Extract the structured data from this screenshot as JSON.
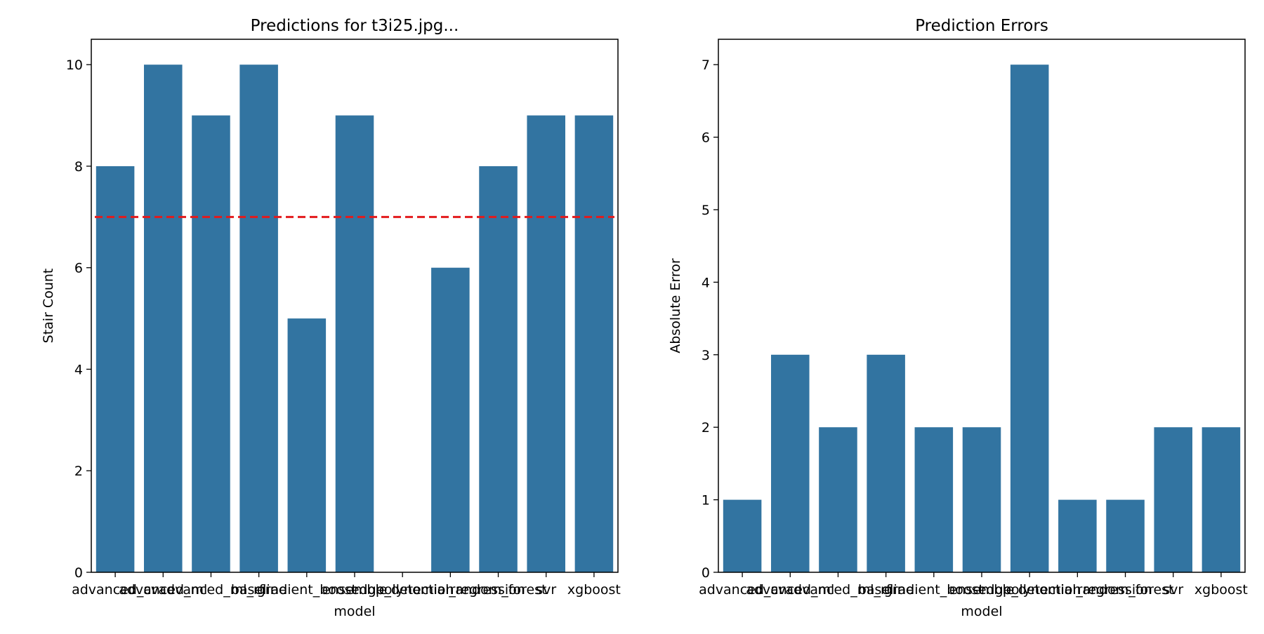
{
  "colors": {
    "bar": "#3274a1",
    "reference_line": "#e31a1c",
    "axes": "#000000"
  },
  "chart_data": [
    {
      "type": "bar",
      "title": "Predictions for t3i25.jpg...",
      "xlabel": "model",
      "ylabel": "Stair Count",
      "categories": [
        "advanced_cv",
        "advanced_ml",
        "advanced_ml_rf",
        "baseline",
        "gradient_boost",
        "ensemble",
        "edge_detection",
        "polynomial_regression",
        "random_forest",
        "svr",
        "xgboost"
      ],
      "values": [
        8,
        10,
        9,
        10,
        5,
        9,
        0,
        6,
        8,
        9,
        9
      ],
      "ylim": [
        0,
        10.5
      ],
      "yticks": [
        0,
        2,
        4,
        6,
        8,
        10
      ],
      "reference_line": {
        "y": 7,
        "style": "dashed",
        "color": "#e31a1c"
      },
      "grid": false
    },
    {
      "type": "bar",
      "title": "Prediction Errors",
      "xlabel": "model",
      "ylabel": "Absolute Error",
      "categories": [
        "advanced_cv",
        "advanced_ml",
        "advanced_ml_rf",
        "baseline",
        "gradient_boost",
        "ensemble",
        "edge_detection",
        "polynomial_regression",
        "random_forest",
        "svr",
        "xgboost"
      ],
      "values": [
        1,
        3,
        2,
        3,
        2,
        2,
        7,
        1,
        1,
        2,
        2
      ],
      "ylim": [
        0,
        7.35
      ],
      "yticks": [
        0,
        1,
        2,
        3,
        4,
        5,
        6,
        7
      ],
      "grid": false
    }
  ]
}
